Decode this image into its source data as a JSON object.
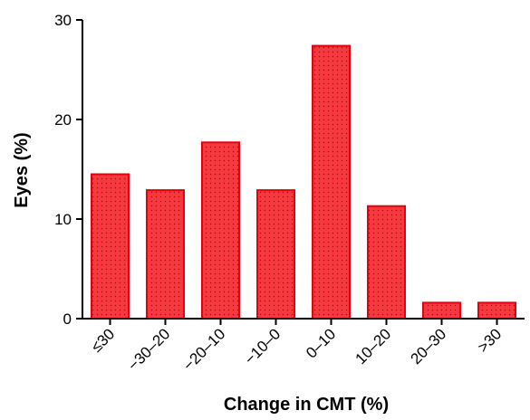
{
  "chart_data": {
    "type": "bar",
    "title": "",
    "xlabel": "Change in CMT (%)",
    "ylabel": "Eyes (%)",
    "categories": [
      "≤30",
      "−30–20",
      "−20–10",
      "−10–0",
      "0–10",
      "10–20",
      "20–30",
      ">30"
    ],
    "values": [
      14.5,
      12.9,
      17.7,
      12.9,
      27.4,
      11.3,
      1.6,
      1.6
    ],
    "ylim": [
      0,
      30
    ],
    "yticks": [
      "0",
      "10",
      "20",
      "30"
    ],
    "grid": false,
    "colors": {
      "bar_fill": "#f5393f",
      "bar_stroke": "#e3000f",
      "dot": "#9a1010"
    }
  }
}
